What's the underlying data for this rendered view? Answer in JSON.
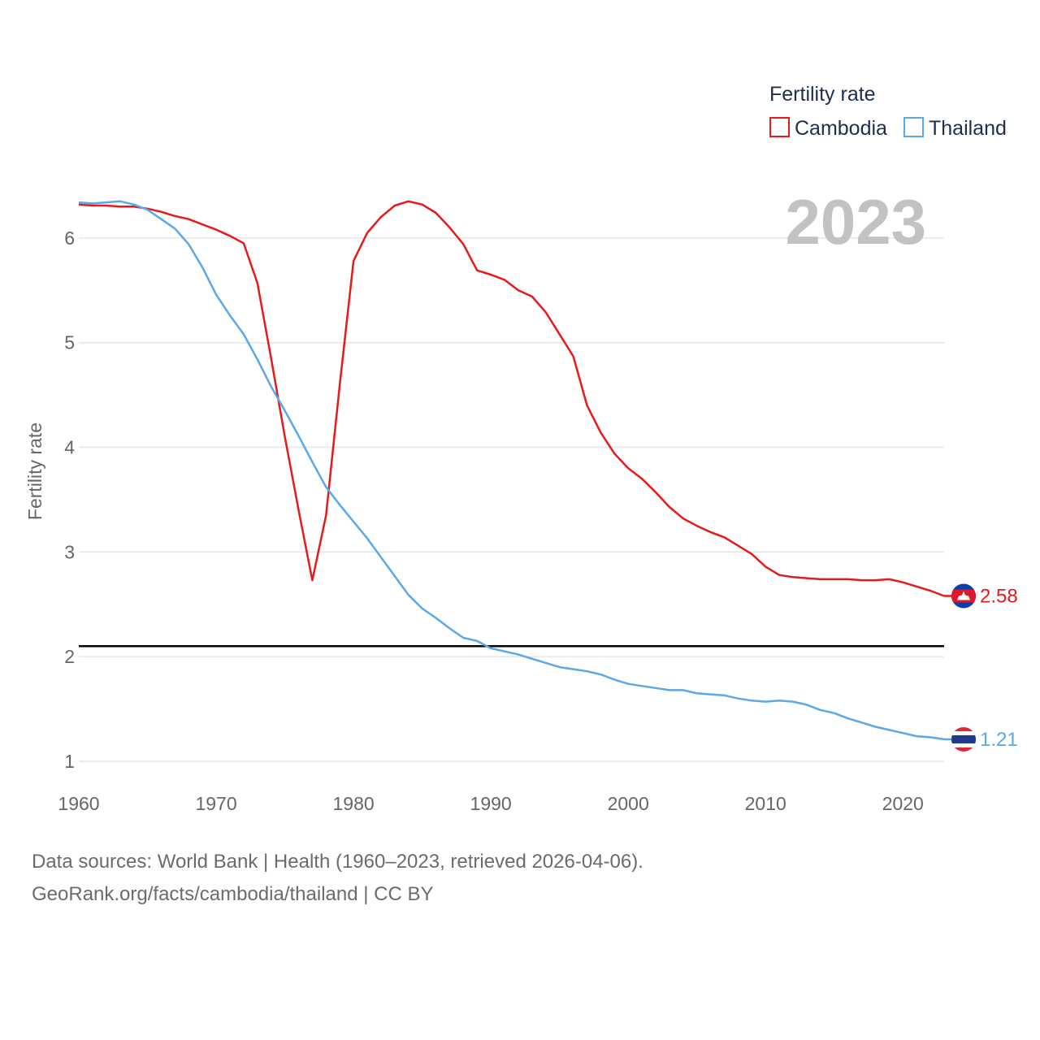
{
  "chart_data": {
    "type": "line",
    "title": "",
    "year_label": "2023",
    "ylabel": "Fertility rate",
    "xlabel": "",
    "xlim": [
      1960,
      2023
    ],
    "ylim": [
      1,
      6.5
    ],
    "x_ticks": [
      1960,
      1970,
      1980,
      1990,
      2000,
      2010,
      2020
    ],
    "y_ticks": [
      1,
      2,
      3,
      4,
      5,
      6
    ],
    "reference_line": 2.1,
    "legend": {
      "title": "Fertility rate",
      "placement": "top-right"
    },
    "x": [
      1960,
      1961,
      1962,
      1963,
      1964,
      1965,
      1966,
      1967,
      1968,
      1969,
      1970,
      1971,
      1972,
      1973,
      1974,
      1975,
      1976,
      1977,
      1978,
      1979,
      1980,
      1981,
      1982,
      1983,
      1984,
      1985,
      1986,
      1987,
      1988,
      1989,
      1990,
      1991,
      1992,
      1993,
      1994,
      1995,
      1996,
      1997,
      1998,
      1999,
      2000,
      2001,
      2002,
      2003,
      2004,
      2005,
      2006,
      2007,
      2008,
      2009,
      2010,
      2011,
      2012,
      2013,
      2014,
      2015,
      2016,
      2017,
      2018,
      2019,
      2020,
      2021,
      2022,
      2023
    ],
    "series": [
      {
        "name": "Cambodia",
        "color": "#e8191a",
        "end_value": "2.58",
        "values": [
          6.32,
          6.31,
          6.31,
          6.3,
          6.3,
          6.28,
          6.25,
          6.21,
          6.18,
          6.13,
          6.08,
          6.02,
          5.95,
          5.57,
          4.85,
          4.1,
          3.4,
          2.73,
          3.35,
          4.6,
          5.78,
          6.05,
          6.2,
          6.31,
          6.35,
          6.32,
          6.24,
          6.1,
          5.94,
          5.69,
          5.65,
          5.6,
          5.5,
          5.44,
          5.29,
          5.08,
          4.87,
          4.4,
          4.14,
          3.94,
          3.8,
          3.7,
          3.57,
          3.43,
          3.32,
          3.25,
          3.19,
          3.14,
          3.06,
          2.98,
          2.86,
          2.78,
          2.76,
          2.75,
          2.74,
          2.74,
          2.74,
          2.73,
          2.73,
          2.74,
          2.71,
          2.67,
          2.63,
          2.58
        ]
      },
      {
        "name": "Thailand",
        "color": "#5ba8e8",
        "end_value": "1.21",
        "values": [
          6.34,
          6.33,
          6.34,
          6.35,
          6.32,
          6.27,
          6.18,
          6.09,
          5.94,
          5.72,
          5.46,
          5.26,
          5.08,
          4.84,
          4.58,
          4.35,
          4.11,
          3.86,
          3.62,
          3.45,
          3.29,
          3.13,
          2.95,
          2.77,
          2.59,
          2.46,
          2.37,
          2.27,
          2.18,
          2.15,
          2.08,
          2.05,
          2.02,
          1.98,
          1.94,
          1.9,
          1.88,
          1.86,
          1.83,
          1.78,
          1.74,
          1.72,
          1.7,
          1.68,
          1.68,
          1.65,
          1.64,
          1.63,
          1.6,
          1.58,
          1.57,
          1.58,
          1.57,
          1.54,
          1.49,
          1.46,
          1.41,
          1.37,
          1.33,
          1.3,
          1.27,
          1.24,
          1.23,
          1.21
        ]
      }
    ]
  },
  "footer": {
    "source_line": "Data sources: World Bank | Health (1960–2023, retrieved 2026-04-06).",
    "url_line": "GeoRank.org/facts/cambodia/thailand | CC BY"
  },
  "colors": {
    "grid": "#e6e6e6",
    "reference": "#000000",
    "cambodia_flag_blue": "#0b3fa8",
    "cambodia_flag_red": "#e0162b",
    "thailand_flag_blue": "#1d3a8f",
    "thailand_flag_red": "#e0243b"
  }
}
